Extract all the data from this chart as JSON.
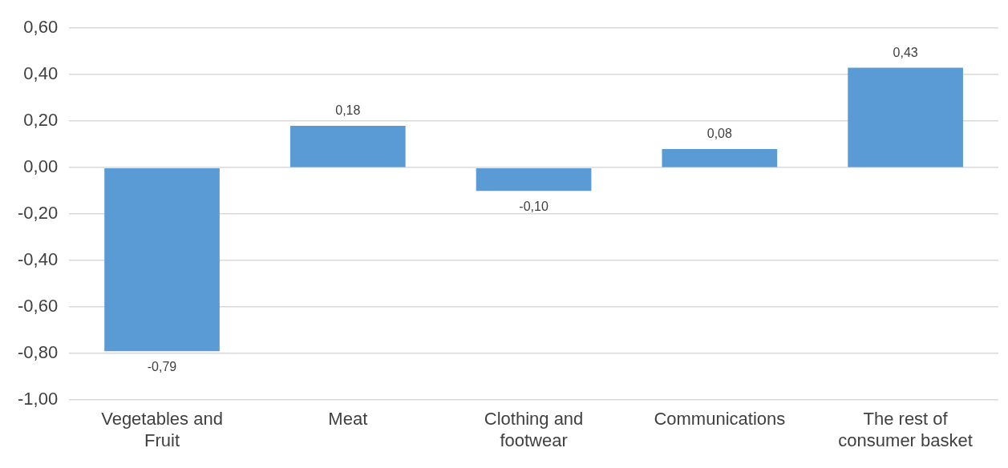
{
  "chart_data": {
    "type": "bar",
    "categories": [
      "Vegetables and Fruit",
      "Meat",
      "Clothing and footwear",
      "Communications",
      "The rest of consumer basket"
    ],
    "values": [
      -0.79,
      0.18,
      -0.1,
      0.08,
      0.43
    ],
    "value_labels": [
      "-0,79",
      "0,18",
      "-0,10",
      "0,08",
      "0,43"
    ],
    "color": "#5b9bd5",
    "ylim": [
      -1,
      0.6
    ],
    "yticks": [
      {
        "value": -1,
        "label": "-1,00"
      },
      {
        "value": -0.8,
        "label": "-0,80"
      },
      {
        "value": -0.6,
        "label": "-0,60"
      },
      {
        "value": -0.4,
        "label": "-0,40"
      },
      {
        "value": -0.2,
        "label": "-0,20"
      },
      {
        "value": 0,
        "label": "0,00"
      },
      {
        "value": 0.2,
        "label": "0,20"
      },
      {
        "value": 0.4,
        "label": "0,40"
      },
      {
        "value": 0.6,
        "label": "0,60"
      }
    ],
    "grid": "y",
    "legend": false
  }
}
